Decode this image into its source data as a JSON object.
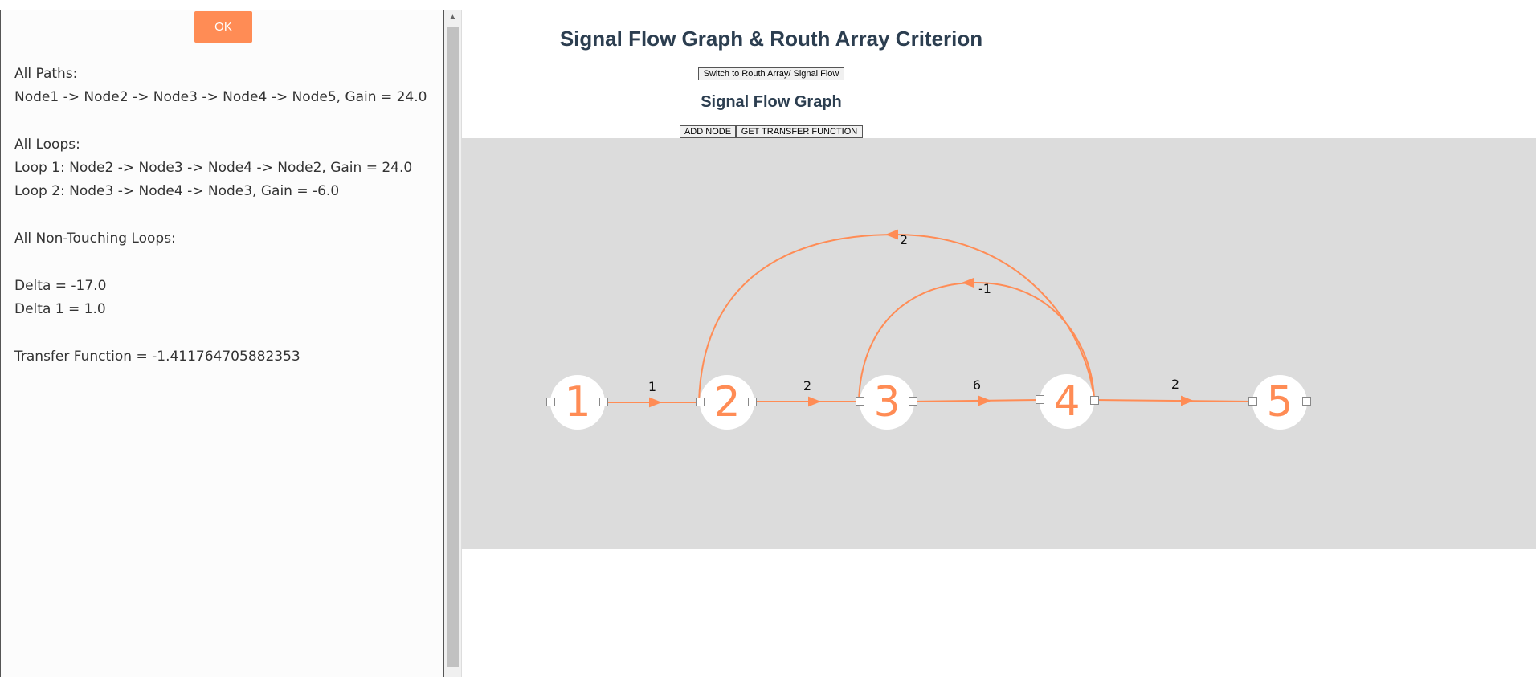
{
  "ok_button": "OK",
  "results": [
    "All Paths:",
    "Node1 -> Node2 -> Node3 -> Node4 -> Node5, Gain = 24.0",
    "",
    "All Loops:",
    "Loop 1: Node2 -> Node3 -> Node4 -> Node2, Gain = 24.0",
    "Loop 2: Node3 -> Node4 -> Node3, Gain = -6.0",
    "",
    "All Non-Touching Loops:",
    "",
    "Delta = -17.0",
    "Delta 1 = 1.0",
    "",
    "Transfer Function = -1.411764705882353"
  ],
  "title": "Signal Flow Graph & Routh Array Criterion",
  "switch_button": "Switch to Routh Array/ Signal Flow",
  "section_title": "Signal Flow Graph",
  "add_node_button": "ADD NODE",
  "transfer_button": "GET TRANSFER FUNCTION",
  "nodes": [
    "1",
    "2",
    "3",
    "4",
    "5"
  ],
  "edges": [
    {
      "from": "1",
      "to": "2",
      "gain": "1"
    },
    {
      "from": "2",
      "to": "3",
      "gain": "2"
    },
    {
      "from": "3",
      "to": "4",
      "gain": "6"
    },
    {
      "from": "4",
      "to": "5",
      "gain": "2"
    },
    {
      "from": "4",
      "to": "2",
      "gain": "2"
    },
    {
      "from": "4",
      "to": "3",
      "gain": "-1"
    }
  ],
  "colors": {
    "accent": "#ff8c55",
    "canvas": "#dcdcdc",
    "title": "#2c3e50"
  }
}
